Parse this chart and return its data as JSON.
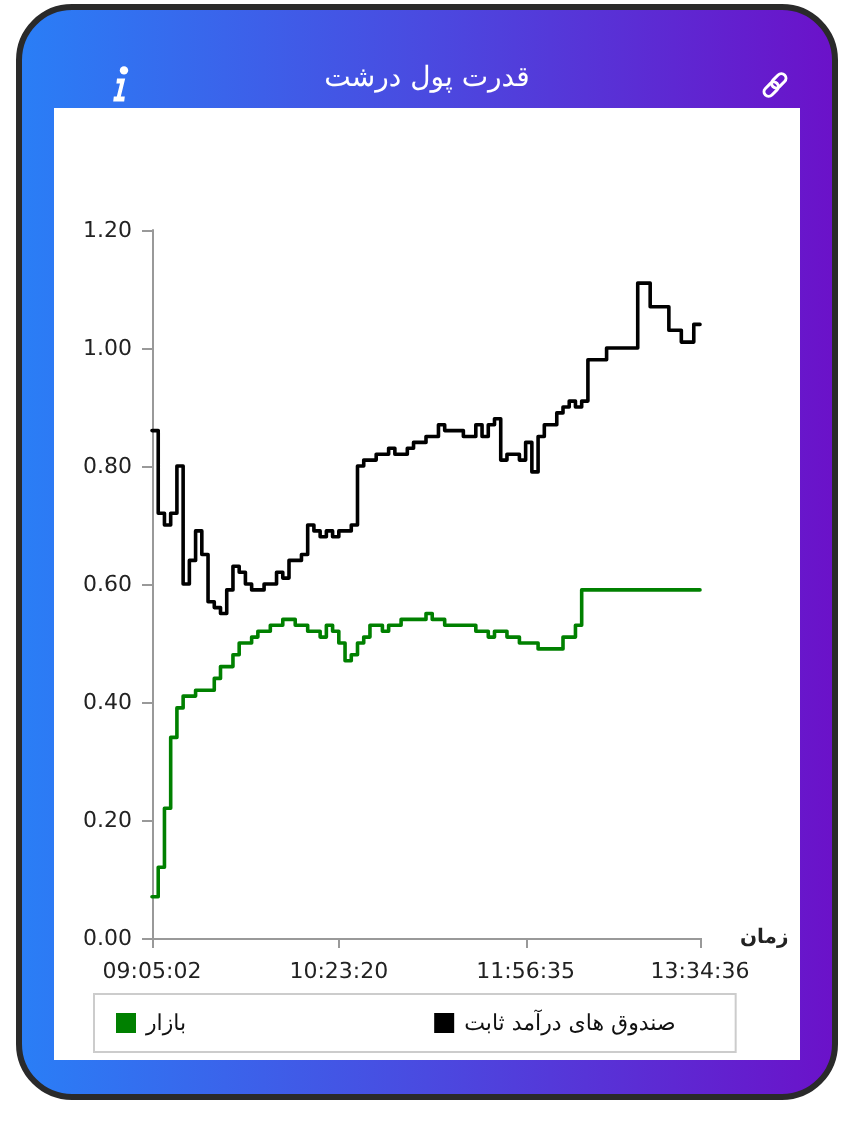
{
  "chart_data": {
    "type": "step",
    "title": "قدرت پول درشت",
    "xlabel": "زمان",
    "categories": [
      "09:05:02",
      null,
      null,
      null,
      null,
      null,
      null,
      null,
      null,
      null,
      null,
      null,
      null,
      null,
      null,
      null,
      null,
      null,
      null,
      null,
      null,
      null,
      null,
      null,
      null,
      null,
      null,
      null,
      null,
      null,
      "10:23:20",
      null,
      null,
      null,
      null,
      null,
      null,
      null,
      null,
      null,
      null,
      null,
      null,
      null,
      null,
      null,
      null,
      null,
      null,
      null,
      null,
      null,
      null,
      null,
      null,
      null,
      null,
      null,
      null,
      null,
      "11:56:35",
      null,
      null,
      null,
      null,
      null,
      null,
      null,
      null,
      null,
      null,
      null,
      null,
      null,
      null,
      null,
      null,
      null,
      null,
      null,
      null,
      null,
      null,
      null,
      null,
      null,
      null,
      null,
      "13:34:36"
    ],
    "series": [
      {
        "name": "صندوق های درآمد ثابت",
        "color": "#000000",
        "values": [
          0.86,
          0.72,
          0.7,
          0.72,
          0.8,
          0.6,
          0.64,
          0.69,
          0.65,
          0.57,
          0.56,
          0.55,
          0.59,
          0.63,
          0.62,
          0.6,
          0.59,
          0.59,
          0.6,
          0.6,
          0.62,
          0.61,
          0.64,
          0.64,
          0.65,
          0.7,
          0.69,
          0.68,
          0.69,
          0.68,
          0.69,
          0.69,
          0.7,
          0.8,
          0.81,
          0.81,
          0.82,
          0.82,
          0.83,
          0.82,
          0.82,
          0.83,
          0.84,
          0.84,
          0.85,
          0.85,
          0.87,
          0.86,
          0.86,
          0.86,
          0.85,
          0.85,
          0.87,
          0.85,
          0.87,
          0.88,
          0.81,
          0.82,
          0.82,
          0.81,
          0.84,
          0.79,
          0.85,
          0.87,
          0.87,
          0.89,
          0.9,
          0.91,
          0.9,
          0.91,
          0.98,
          0.98,
          0.98,
          1.0,
          1.0,
          1.0,
          1.0,
          1.0,
          1.11,
          1.11,
          1.07,
          1.07,
          1.07,
          1.03,
          1.03,
          1.01,
          1.01,
          1.04,
          1.04
        ]
      },
      {
        "name": "بازار",
        "color": "#008000",
        "values": [
          0.07,
          0.12,
          0.22,
          0.34,
          0.39,
          0.41,
          0.41,
          0.42,
          0.42,
          0.42,
          0.44,
          0.46,
          0.46,
          0.48,
          0.5,
          0.5,
          0.51,
          0.52,
          0.52,
          0.53,
          0.53,
          0.54,
          0.54,
          0.53,
          0.53,
          0.52,
          0.52,
          0.51,
          0.53,
          0.52,
          0.5,
          0.47,
          0.48,
          0.5,
          0.51,
          0.53,
          0.53,
          0.52,
          0.53,
          0.53,
          0.54,
          0.54,
          0.54,
          0.54,
          0.55,
          0.54,
          0.54,
          0.53,
          0.53,
          0.53,
          0.53,
          0.53,
          0.52,
          0.52,
          0.51,
          0.52,
          0.52,
          0.51,
          0.51,
          0.5,
          0.5,
          0.5,
          0.49,
          0.49,
          0.49,
          0.49,
          0.51,
          0.51,
          0.53,
          0.59,
          0.59,
          0.59,
          0.59,
          0.59,
          0.59,
          0.59,
          0.59,
          0.59,
          0.59,
          0.59,
          0.59,
          0.59,
          0.59,
          0.59,
          0.59,
          0.59,
          0.59,
          0.59,
          0.59
        ]
      }
    ],
    "ylim": [
      0,
      1.2
    ],
    "yticks": [
      {
        "value": 0,
        "label": "0.00"
      },
      {
        "value": 0.2,
        "label": "0.20"
      },
      {
        "value": 0.4,
        "label": "0.40"
      },
      {
        "value": 0.6,
        "label": "0.60"
      },
      {
        "value": 0.8,
        "label": "0.80"
      },
      {
        "value": 1,
        "label": "1.00"
      },
      {
        "value": 1.2,
        "label": "1.20"
      }
    ],
    "grid": false,
    "legend": "bottom",
    "marker": "none"
  }
}
